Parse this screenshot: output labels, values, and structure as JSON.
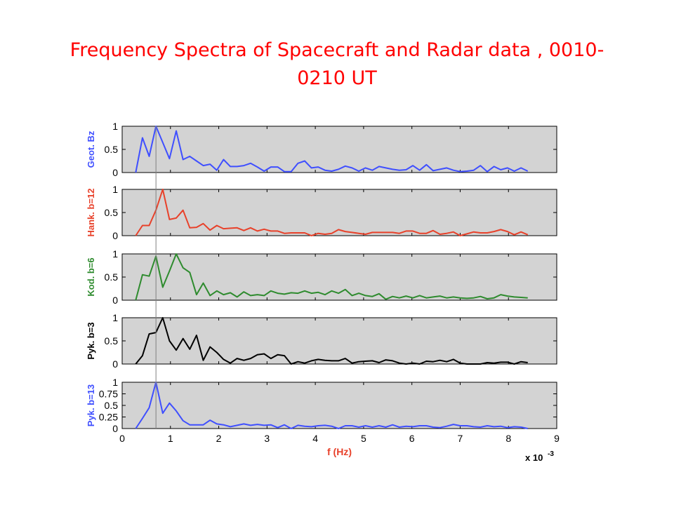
{
  "slide": {
    "title_line1": "Frequency Spectra of Spacecraft and Radar data , 0010-",
    "title_line2": "0210 UT"
  },
  "chart_data": {
    "type": "line",
    "xlabel": "f (Hz)",
    "x_multiplier": "x 10",
    "x_multiplier_exp": "-3",
    "xlim": [
      0,
      9
    ],
    "x_ticks": [
      "0",
      "1",
      "2",
      "3",
      "4",
      "5",
      "6",
      "7",
      "8",
      "9"
    ],
    "reference_line_x": 0.7,
    "grid": false,
    "panel_background": "#d3d3d3",
    "x": [
      0.28,
      0.42,
      0.56,
      0.7,
      0.84,
      0.98,
      1.12,
      1.26,
      1.4,
      1.54,
      1.68,
      1.82,
      1.96,
      2.1,
      2.24,
      2.38,
      2.52,
      2.66,
      2.8,
      2.94,
      3.08,
      3.22,
      3.36,
      3.5,
      3.64,
      3.78,
      3.92,
      4.06,
      4.2,
      4.34,
      4.48,
      4.62,
      4.76,
      4.9,
      5.04,
      5.18,
      5.32,
      5.46,
      5.6,
      5.74,
      5.88,
      6.02,
      6.16,
      6.3,
      6.44,
      6.58,
      6.72,
      6.86,
      7.0,
      7.14,
      7.28,
      7.42,
      7.56,
      7.7,
      7.84,
      7.98,
      8.12,
      8.26,
      8.4
    ],
    "panels": [
      {
        "ylabel": "Geot. Bz",
        "color": "#3f4fff",
        "yticks": [
          "0",
          "0.5",
          "1"
        ],
        "values": [
          0.0,
          0.75,
          0.35,
          1.0,
          0.65,
          0.3,
          0.9,
          0.28,
          0.35,
          0.25,
          0.15,
          0.18,
          0.05,
          0.28,
          0.13,
          0.13,
          0.15,
          0.2,
          0.12,
          0.03,
          0.12,
          0.12,
          0.02,
          0.02,
          0.2,
          0.25,
          0.1,
          0.12,
          0.05,
          0.03,
          0.07,
          0.14,
          0.1,
          0.03,
          0.1,
          0.05,
          0.13,
          0.1,
          0.07,
          0.05,
          0.06,
          0.15,
          0.05,
          0.17,
          0.04,
          0.07,
          0.1,
          0.05,
          0.02,
          0.03,
          0.05,
          0.15,
          0.02,
          0.13,
          0.06,
          0.1,
          0.03,
          0.1,
          0.03
        ]
      },
      {
        "ylabel": "Hank. b=12",
        "color": "#e8412a",
        "yticks": [
          "0",
          "0.5",
          "1"
        ],
        "values": [
          0.0,
          0.22,
          0.22,
          0.55,
          1.0,
          0.35,
          0.38,
          0.55,
          0.17,
          0.18,
          0.26,
          0.12,
          0.22,
          0.15,
          0.16,
          0.17,
          0.11,
          0.17,
          0.1,
          0.14,
          0.1,
          0.1,
          0.05,
          0.06,
          0.06,
          0.06,
          0.0,
          0.05,
          0.03,
          0.05,
          0.13,
          0.09,
          0.07,
          0.05,
          0.03,
          0.07,
          0.07,
          0.07,
          0.07,
          0.05,
          0.1,
          0.1,
          0.05,
          0.05,
          0.11,
          0.03,
          0.05,
          0.08,
          0.0,
          0.04,
          0.08,
          0.06,
          0.06,
          0.09,
          0.13,
          0.09,
          0.02,
          0.08,
          0.02
        ]
      },
      {
        "ylabel": "Kod. b=6",
        "color": "#2e8b2e",
        "yticks": [
          "0",
          "0.5",
          "1"
        ],
        "values": [
          0.0,
          0.55,
          0.52,
          0.95,
          0.28,
          0.63,
          1.0,
          0.7,
          0.6,
          0.12,
          0.37,
          0.1,
          0.2,
          0.12,
          0.16,
          0.07,
          0.18,
          0.1,
          0.12,
          0.1,
          0.2,
          0.15,
          0.13,
          0.16,
          0.15,
          0.2,
          0.15,
          0.17,
          0.12,
          0.2,
          0.15,
          0.23,
          0.1,
          0.15,
          0.1,
          0.08,
          0.14,
          0.02,
          0.08,
          0.05,
          0.09,
          0.05,
          0.1,
          0.05,
          0.07,
          0.09,
          0.05,
          0.07,
          0.05,
          0.04,
          0.05,
          0.08,
          0.03,
          0.05,
          0.12,
          0.09,
          0.07,
          0.06,
          0.05
        ]
      },
      {
        "ylabel": "Pyk. b=3",
        "color": "#000000",
        "yticks": [
          "0",
          "0.5",
          "1"
        ],
        "values": [
          0.0,
          0.18,
          0.65,
          0.68,
          1.0,
          0.5,
          0.3,
          0.55,
          0.32,
          0.62,
          0.08,
          0.37,
          0.25,
          0.1,
          0.02,
          0.12,
          0.08,
          0.12,
          0.2,
          0.22,
          0.12,
          0.2,
          0.18,
          0.0,
          0.05,
          0.02,
          0.07,
          0.1,
          0.08,
          0.07,
          0.07,
          0.12,
          0.02,
          0.05,
          0.06,
          0.07,
          0.03,
          0.09,
          0.07,
          0.02,
          0.0,
          0.02,
          0.0,
          0.06,
          0.05,
          0.08,
          0.05,
          0.1,
          0.02,
          0.0,
          0.0,
          0.0,
          0.03,
          0.02,
          0.04,
          0.04,
          0.0,
          0.05,
          0.03
        ]
      },
      {
        "ylabel": "Pyk. b=13",
        "color": "#3f4fff",
        "yticks": [
          "0",
          "0.25",
          "0.5",
          "0.75",
          "1"
        ],
        "values": [
          0.0,
          0.22,
          0.45,
          1.0,
          0.33,
          0.55,
          0.38,
          0.17,
          0.08,
          0.08,
          0.08,
          0.18,
          0.1,
          0.08,
          0.04,
          0.07,
          0.1,
          0.07,
          0.09,
          0.07,
          0.08,
          0.02,
          0.08,
          0.0,
          0.07,
          0.05,
          0.04,
          0.06,
          0.07,
          0.05,
          0.0,
          0.06,
          0.06,
          0.03,
          0.06,
          0.03,
          0.06,
          0.03,
          0.08,
          0.03,
          0.05,
          0.04,
          0.06,
          0.06,
          0.03,
          0.02,
          0.05,
          0.09,
          0.06,
          0.06,
          0.04,
          0.03,
          0.06,
          0.04,
          0.05,
          0.02,
          0.04,
          0.03,
          0.0
        ]
      }
    ]
  }
}
